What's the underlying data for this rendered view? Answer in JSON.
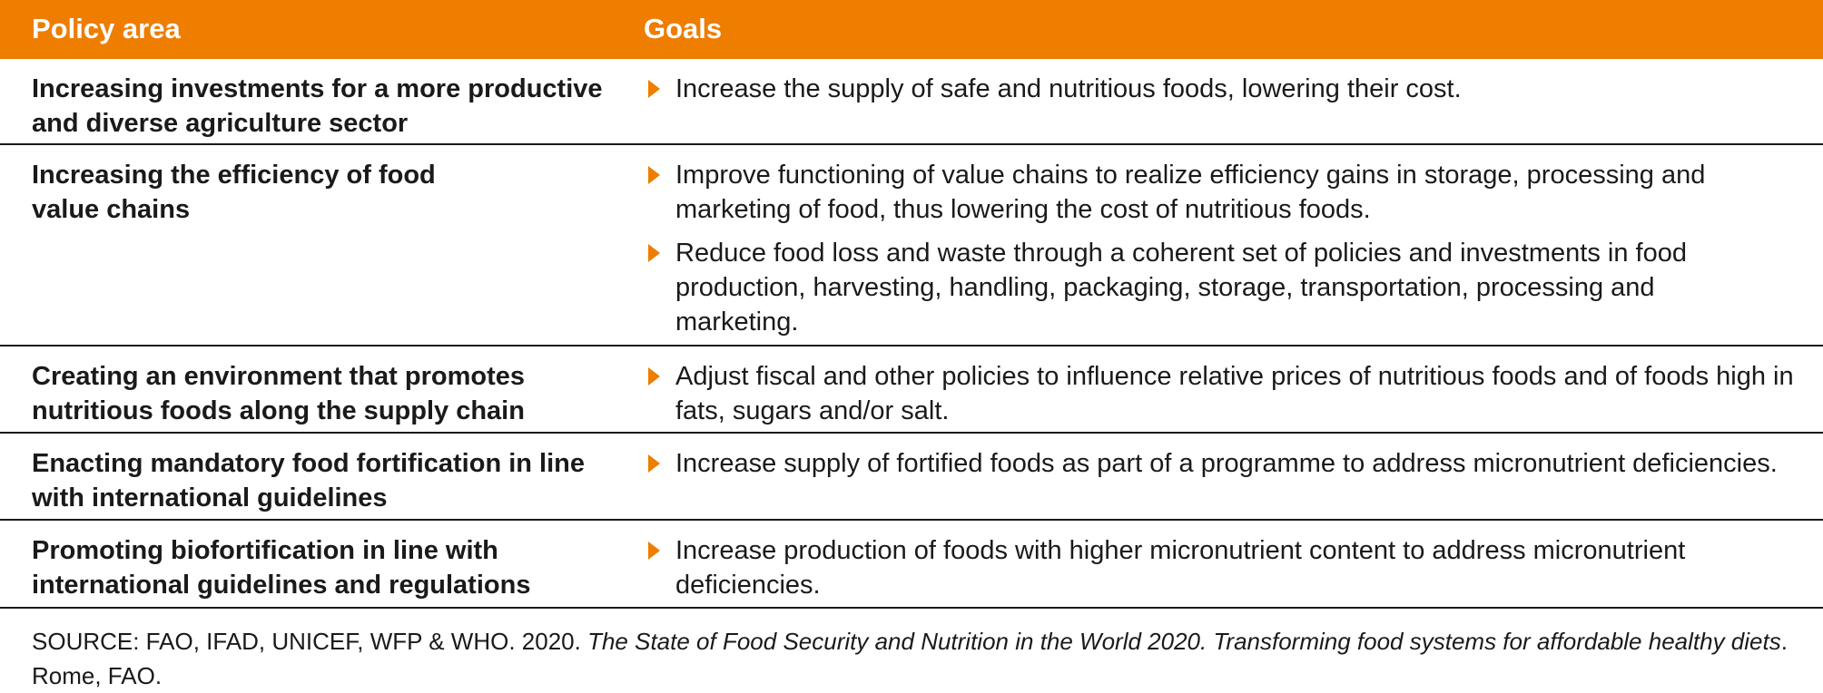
{
  "header": {
    "col1": "Policy area",
    "col2": "Goals"
  },
  "rows": [
    {
      "area": "Increasing investments for a more productive and diverse agriculture sector",
      "goals": [
        "Increase the supply of safe and nutritious foods, lowering their cost."
      ]
    },
    {
      "area": "Increasing the efficiency of food value chains",
      "goals": [
        "Improve functioning of value chains to realize efficiency gains in storage, processing and marketing of food, thus lowering the cost of nutritious foods.",
        "Reduce food loss and waste through a coherent set of policies and investments in food production, harvesting, handling, packaging, storage, transportation, processing and marketing."
      ]
    },
    {
      "area": "Creating an environment that promotes nutritious foods along the supply chain",
      "goals": [
        "Adjust fiscal and other policies to influence relative prices of nutritious foods and of foods high in fats, sugars and/or salt."
      ]
    },
    {
      "area": "Enacting mandatory food fortification in line with international guidelines",
      "goals": [
        "Increase supply of fortified foods as part of a programme to address micronutrient deficiencies."
      ]
    },
    {
      "area": "Promoting biofortification in line with international guidelines and regulations",
      "goals": [
        "Increase production of foods with higher micronutrient content to address micronutrient deficiencies."
      ]
    }
  ],
  "source": {
    "prefix": "SOURCE: FAO, IFAD, UNICEF, WFP & WHO. 2020. ",
    "title": "The State of Food Security and Nutrition in the World 2020. Transforming food systems for affordable healthy diets",
    "suffix": ". Rome, FAO."
  },
  "colors": {
    "header_bg": "#ee7d00",
    "bullet": "#ee7d00",
    "rule": "#1a1a1a"
  },
  "icons": {
    "bullet": "triangle-right-icon"
  }
}
